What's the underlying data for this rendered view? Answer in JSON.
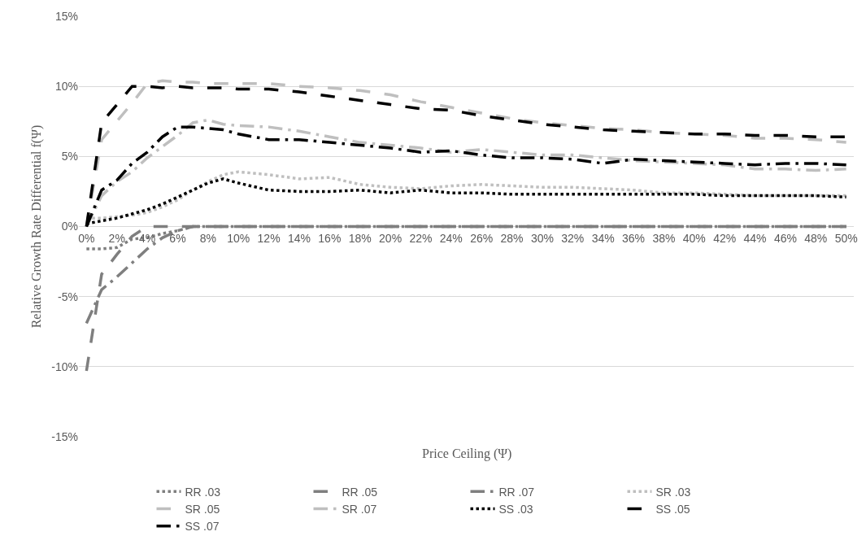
{
  "chart_data": {
    "type": "line",
    "xlabel": "Price Ceiling (Ψ)",
    "ylabel": "Relative Growth Rate Differential f(Ψ)",
    "x": [
      0,
      1,
      2,
      3,
      4,
      5,
      6,
      7,
      8,
      9,
      10,
      12,
      14,
      16,
      18,
      20,
      22,
      24,
      26,
      28,
      30,
      32,
      34,
      36,
      38,
      40,
      42,
      44,
      46,
      48,
      50
    ],
    "xlim": [
      -0.5,
      50.5
    ],
    "xticks": [
      {
        "value": 0,
        "label": "0%"
      },
      {
        "value": 2,
        "label": "2%"
      },
      {
        "value": 4,
        "label": "4%"
      },
      {
        "value": 6,
        "label": "6%"
      },
      {
        "value": 8,
        "label": "8%"
      },
      {
        "value": 10,
        "label": "10%"
      },
      {
        "value": 12,
        "label": "12%"
      },
      {
        "value": 14,
        "label": "14%"
      },
      {
        "value": 16,
        "label": "16%"
      },
      {
        "value": 18,
        "label": "18%"
      },
      {
        "value": 20,
        "label": "20%"
      },
      {
        "value": 22,
        "label": "22%"
      },
      {
        "value": 24,
        "label": "24%"
      },
      {
        "value": 26,
        "label": "26%"
      },
      {
        "value": 28,
        "label": "28%"
      },
      {
        "value": 30,
        "label": "30%"
      },
      {
        "value": 32,
        "label": "32%"
      },
      {
        "value": 34,
        "label": "34%"
      },
      {
        "value": 36,
        "label": "36%"
      },
      {
        "value": 38,
        "label": "38%"
      },
      {
        "value": 40,
        "label": "40%"
      },
      {
        "value": 42,
        "label": "42%"
      },
      {
        "value": 44,
        "label": "44%"
      },
      {
        "value": 46,
        "label": "46%"
      },
      {
        "value": 48,
        "label": "48%"
      },
      {
        "value": 50,
        "label": "50%"
      }
    ],
    "ylim": [
      -15,
      15
    ],
    "yticks": [
      {
        "value": -15,
        "label": "-15%"
      },
      {
        "value": -10,
        "label": "-10%"
      },
      {
        "value": -5,
        "label": "-5%"
      },
      {
        "value": 0,
        "label": "0%"
      },
      {
        "value": 5,
        "label": "5%"
      },
      {
        "value": 10,
        "label": "10%"
      },
      {
        "value": 15,
        "label": "15%"
      }
    ],
    "grid": "y",
    "legend": "bottom",
    "marker": "none",
    "series": [
      {
        "name": "RR .03",
        "color": "#7f7f7f",
        "line_style": "dotted",
        "values": [
          -1.6,
          -1.6,
          -1.5,
          -0.9,
          -0.8,
          -0.5,
          -0.3,
          0,
          0,
          0,
          0,
          0,
          0,
          0,
          0,
          0,
          0,
          0,
          0,
          0,
          0,
          0,
          0,
          0,
          0,
          0,
          0,
          0,
          0,
          0,
          0
        ]
      },
      {
        "name": "RR .05",
        "color": "#7f7f7f",
        "line_style": "dashed",
        "values": [
          -10.3,
          -3.4,
          -2.0,
          -0.7,
          0,
          0,
          0,
          0,
          0,
          0,
          0,
          0,
          0,
          0,
          0,
          0,
          0,
          0,
          0,
          0,
          0,
          0,
          0,
          0,
          0,
          0,
          0,
          0,
          0,
          0,
          0
        ]
      },
      {
        "name": "RR .07",
        "color": "#7f7f7f",
        "line_style": "dashdot",
        "values": [
          -6.9,
          -4.5,
          -3.6,
          -2.6,
          -1.6,
          -0.8,
          -0.3,
          0,
          0,
          0,
          0,
          0,
          0,
          0,
          0,
          0,
          0,
          0,
          0,
          0,
          0,
          0,
          0,
          0,
          0,
          0,
          0,
          0,
          0,
          0,
          0
        ]
      },
      {
        "name": "SR .03",
        "color": "#bfbfbf",
        "line_style": "dotted",
        "values": [
          0.6,
          0.6,
          0.7,
          0.8,
          1.0,
          1.4,
          1.9,
          2.6,
          3.2,
          3.7,
          3.9,
          3.7,
          3.4,
          3.5,
          3.0,
          2.8,
          2.7,
          2.9,
          3.0,
          2.9,
          2.8,
          2.8,
          2.7,
          2.6,
          2.4,
          2.4,
          2.3,
          2.2,
          2.2,
          2.2,
          2.2
        ]
      },
      {
        "name": "SR .05",
        "color": "#bfbfbf",
        "line_style": "dashed",
        "values": [
          0,
          6.2,
          7.5,
          8.8,
          10.2,
          10.4,
          10.3,
          10.3,
          10.2,
          10.2,
          10.2,
          10.2,
          10.0,
          9.9,
          9.7,
          9.4,
          8.9,
          8.5,
          8.1,
          7.7,
          7.4,
          7.2,
          7.0,
          6.9,
          6.7,
          6.6,
          6.5,
          6.3,
          6.3,
          6.2,
          6.0
        ]
      },
      {
        "name": "SR .07",
        "color": "#bfbfbf",
        "line_style": "dashdot",
        "values": [
          0,
          2.2,
          3.2,
          3.9,
          4.9,
          5.7,
          6.5,
          7.4,
          7.6,
          7.3,
          7.2,
          7.1,
          6.8,
          6.4,
          6.0,
          5.8,
          5.6,
          5.3,
          5.5,
          5.3,
          5.1,
          5.1,
          4.9,
          4.7,
          4.6,
          4.5,
          4.4,
          4.1,
          4.1,
          4.0,
          4.1
        ]
      },
      {
        "name": "SS .03",
        "color": "#000000",
        "line_style": "dotted",
        "values": [
          0.2,
          0.4,
          0.6,
          0.9,
          1.2,
          1.6,
          2.1,
          2.6,
          3.1,
          3.4,
          3.1,
          2.6,
          2.5,
          2.5,
          2.6,
          2.4,
          2.6,
          2.4,
          2.4,
          2.3,
          2.3,
          2.3,
          2.3,
          2.3,
          2.3,
          2.3,
          2.2,
          2.2,
          2.2,
          2.2,
          2.1
        ]
      },
      {
        "name": "SS .05",
        "color": "#000000",
        "line_style": "dashed",
        "values": [
          0,
          7.4,
          8.7,
          10.0,
          10.0,
          9.9,
          10.0,
          9.9,
          9.9,
          9.9,
          9.8,
          9.8,
          9.6,
          9.3,
          9.0,
          8.7,
          8.4,
          8.3,
          7.9,
          7.6,
          7.3,
          7.1,
          6.9,
          6.8,
          6.7,
          6.6,
          6.6,
          6.5,
          6.5,
          6.4,
          6.4
        ]
      },
      {
        "name": "SS .07",
        "color": "#000000",
        "line_style": "dashdot",
        "values": [
          0,
          2.6,
          3.3,
          4.5,
          5.3,
          6.4,
          7.1,
          7.1,
          7.0,
          6.9,
          6.6,
          6.2,
          6.2,
          6.0,
          5.8,
          5.6,
          5.3,
          5.4,
          5.1,
          4.9,
          4.9,
          4.8,
          4.5,
          4.8,
          4.7,
          4.6,
          4.5,
          4.4,
          4.5,
          4.5,
          4.4
        ]
      }
    ]
  }
}
